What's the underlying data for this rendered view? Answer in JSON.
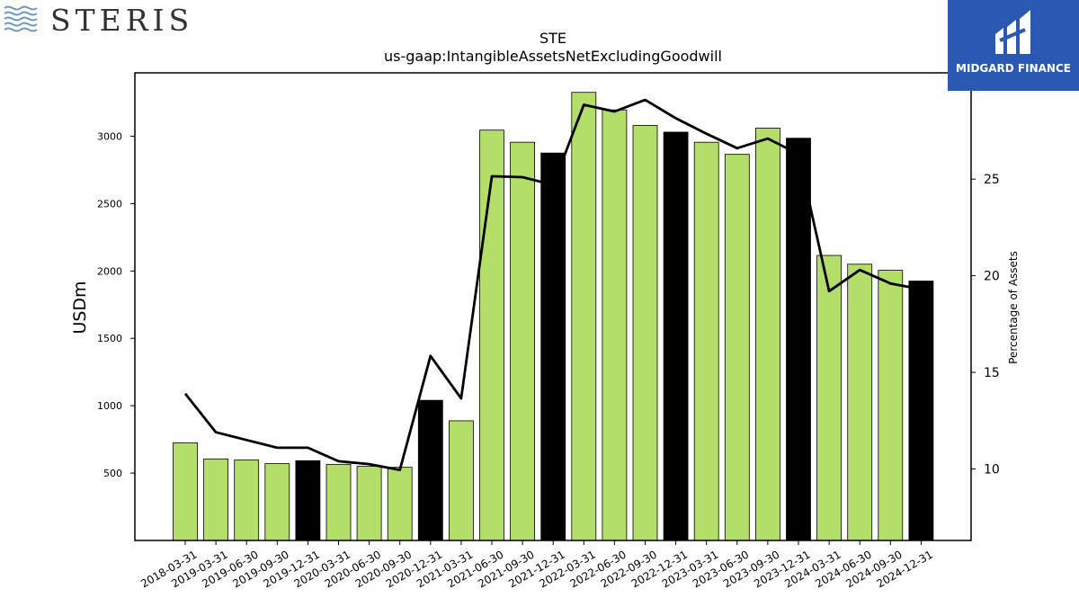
{
  "branding": {
    "left_logo": "STERIS",
    "right_logo": "MIDGARD FINANCE"
  },
  "colors": {
    "regular_bar": "#b3de69",
    "q4_bar": "#000000",
    "line": "#000000"
  },
  "chart_data": {
    "type": "bar",
    "title": "STE",
    "subtitle": "us-gaap:IntangibleAssetsNetExcludingGoodwill",
    "ylabel": "USDm",
    "y2label": "Percentage of Assets",
    "ylim": [
      0,
      3470
    ],
    "y2lim": [
      6.3,
      30.5
    ],
    "yticks": [
      "500",
      "1000",
      "1500",
      "2000",
      "2500",
      "3000"
    ],
    "y2ticks": [
      "10",
      "15",
      "20",
      "25"
    ],
    "categories": [
      "2018-03-31",
      "2019-03-31",
      "2019-06-30",
      "2019-09-30",
      "2019-12-31",
      "2020-03-31",
      "2020-06-30",
      "2020-09-30",
      "2020-12-31",
      "2021-03-31",
      "2021-06-30",
      "2021-09-30",
      "2021-12-31",
      "2022-03-31",
      "2022-06-30",
      "2022-09-30",
      "2022-12-31",
      "2023-03-31",
      "2023-06-30",
      "2023-09-30",
      "2023-12-31",
      "2024-03-31",
      "2024-06-30",
      "2024-09-30",
      "2024-12-31"
    ],
    "series": [
      {
        "values": [
          725,
          605,
          597,
          570,
          592,
          565,
          550,
          543,
          1040,
          888,
          3045,
          2955,
          2875,
          3325,
          3195,
          3080,
          3030,
          2955,
          2865,
          3060,
          2985,
          2115,
          2050,
          2005,
          1925
        ]
      },
      {
        "values": [
          13.9,
          11.9,
          11.5,
          11.1,
          11.1,
          10.4,
          10.25,
          9.95,
          15.85,
          13.65,
          25.15,
          25.1,
          24.7,
          28.85,
          28.5,
          29.1,
          28.15,
          27.35,
          26.6,
          27.1,
          26.3,
          19.2,
          20.3,
          19.6,
          19.3
        ]
      }
    ],
    "q4_dates": [
      "2019-12-31",
      "2020-12-31",
      "2021-12-31",
      "2022-12-31",
      "2023-12-31",
      "2024-12-31"
    ]
  }
}
